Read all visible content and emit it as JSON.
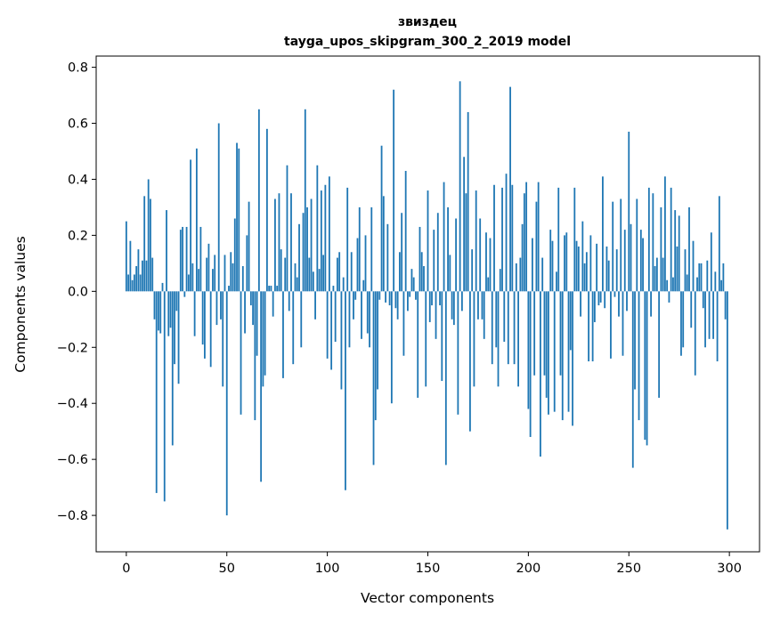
{
  "chart_data": {
    "type": "bar",
    "title": "звиздец",
    "subtitle": "tayga_upos_skipgram_300_2_2019 model",
    "xlabel": "Vector components",
    "ylabel": "Components values",
    "xlim": [
      -15,
      315
    ],
    "ylim": [
      -0.93,
      0.84
    ],
    "xticks": [
      0,
      50,
      100,
      150,
      200,
      250,
      300
    ],
    "xtick_labels": [
      "0",
      "50",
      "100",
      "150",
      "200",
      "250",
      "300"
    ],
    "yticks": [
      0.8,
      0.6,
      0.4,
      0.2,
      0.0,
      -0.2,
      -0.4,
      -0.6,
      -0.8
    ],
    "ytick_labels": [
      "0.8",
      "0.6",
      "0.4",
      "0.2",
      "0.0",
      "−0.2",
      "−0.4",
      "−0.6",
      "−0.8"
    ],
    "grid": false,
    "bar_color": "#1f77b4",
    "x": [
      0,
      1,
      2,
      3,
      4,
      5,
      6,
      7,
      8,
      9,
      10,
      11,
      12,
      13,
      14,
      15,
      16,
      17,
      18,
      19,
      20,
      21,
      22,
      23,
      24,
      25,
      26,
      27,
      28,
      29,
      30,
      31,
      32,
      33,
      34,
      35,
      36,
      37,
      38,
      39,
      40,
      41,
      42,
      43,
      44,
      45,
      46,
      47,
      48,
      49,
      50,
      51,
      52,
      53,
      54,
      55,
      56,
      57,
      58,
      59,
      60,
      61,
      62,
      63,
      64,
      65,
      66,
      67,
      68,
      69,
      70,
      71,
      72,
      73,
      74,
      75,
      76,
      77,
      78,
      79,
      80,
      81,
      82,
      83,
      84,
      85,
      86,
      87,
      88,
      89,
      90,
      91,
      92,
      93,
      94,
      95,
      96,
      97,
      98,
      99,
      100,
      101,
      102,
      103,
      104,
      105,
      106,
      107,
      108,
      109,
      110,
      111,
      112,
      113,
      114,
      115,
      116,
      117,
      118,
      119,
      120,
      121,
      122,
      123,
      124,
      125,
      126,
      127,
      128,
      129,
      130,
      131,
      132,
      133,
      134,
      135,
      136,
      137,
      138,
      139,
      140,
      141,
      142,
      143,
      144,
      145,
      146,
      147,
      148,
      149,
      150,
      151,
      152,
      153,
      154,
      155,
      156,
      157,
      158,
      159,
      160,
      161,
      162,
      163,
      164,
      165,
      166,
      167,
      168,
      169,
      170,
      171,
      172,
      173,
      174,
      175,
      176,
      177,
      178,
      179,
      180,
      181,
      182,
      183,
      184,
      185,
      186,
      187,
      188,
      189,
      190,
      191,
      192,
      193,
      194,
      195,
      196,
      197,
      198,
      199,
      200,
      201,
      202,
      203,
      204,
      205,
      206,
      207,
      208,
      209,
      210,
      211,
      212,
      213,
      214,
      215,
      216,
      217,
      218,
      219,
      220,
      221,
      222,
      223,
      224,
      225,
      226,
      227,
      228,
      229,
      230,
      231,
      232,
      233,
      234,
      235,
      236,
      237,
      238,
      239,
      240,
      241,
      242,
      243,
      244,
      245,
      246,
      247,
      248,
      249,
      250,
      251,
      252,
      253,
      254,
      255,
      256,
      257,
      258,
      259,
      260,
      261,
      262,
      263,
      264,
      265,
      266,
      267,
      268,
      269,
      270,
      271,
      272,
      273,
      274,
      275,
      276,
      277,
      278,
      279,
      280,
      281,
      282,
      283,
      284,
      285,
      286,
      287,
      288,
      289,
      290,
      291,
      292,
      293,
      294,
      295,
      296,
      297,
      298,
      299
    ],
    "values": [
      0.25,
      0.06,
      0.18,
      0.04,
      0.06,
      0.09,
      0.15,
      0.06,
      0.11,
      0.34,
      0.11,
      0.4,
      0.33,
      0.12,
      -0.1,
      -0.72,
      -0.14,
      -0.15,
      0.03,
      -0.75,
      0.29,
      -0.16,
      -0.13,
      -0.55,
      -0.26,
      -0.07,
      -0.33,
      0.22,
      0.23,
      -0.02,
      0.23,
      0.06,
      0.47,
      0.1,
      -0.16,
      0.51,
      0.08,
      0.23,
      -0.19,
      -0.24,
      0.12,
      0.17,
      -0.27,
      0.08,
      0.13,
      -0.12,
      0.6,
      -0.1,
      -0.34,
      0.13,
      -0.8,
      0.02,
      0.14,
      0.1,
      0.26,
      0.53,
      0.51,
      -0.44,
      0.09,
      -0.15,
      0.2,
      0.32,
      -0.05,
      -0.12,
      -0.46,
      -0.23,
      0.65,
      -0.68,
      -0.34,
      -0.3,
      0.58,
      0.02,
      0.02,
      -0.09,
      0.33,
      0.02,
      0.35,
      0.15,
      -0.31,
      0.12,
      0.45,
      -0.07,
      0.35,
      -0.26,
      0.1,
      0.05,
      0.24,
      -0.2,
      0.28,
      0.65,
      0.3,
      0.12,
      0.33,
      0.07,
      -0.1,
      0.45,
      0.08,
      0.36,
      0.13,
      0.38,
      -0.24,
      0.41,
      -0.28,
      0.02,
      -0.18,
      0.12,
      0.14,
      -0.35,
      0.05,
      -0.71,
      0.37,
      -0.2,
      0.14,
      -0.1,
      -0.03,
      0.19,
      0.3,
      -0.17,
      0.04,
      0.2,
      -0.15,
      -0.2,
      0.3,
      -0.62,
      -0.46,
      -0.35,
      -0.03,
      0.52,
      0.34,
      -0.04,
      0.24,
      -0.05,
      -0.4,
      0.72,
      -0.06,
      -0.1,
      0.14,
      0.28,
      -0.23,
      0.43,
      -0.07,
      -0.02,
      0.08,
      0.05,
      -0.03,
      -0.38,
      0.23,
      0.14,
      0.09,
      -0.34,
      0.36,
      -0.11,
      -0.05,
      0.22,
      -0.17,
      0.28,
      -0.05,
      -0.32,
      0.39,
      -0.62,
      0.3,
      0.13,
      -0.1,
      -0.12,
      0.26,
      -0.44,
      0.75,
      -0.07,
      0.48,
      0.35,
      0.64,
      -0.5,
      0.15,
      -0.34,
      0.36,
      -0.1,
      0.26,
      -0.1,
      -0.17,
      0.21,
      0.05,
      0.19,
      -0.26,
      0.38,
      -0.2,
      -0.34,
      0.08,
      0.37,
      -0.18,
      0.42,
      -0.26,
      0.73,
      0.38,
      -0.26,
      0.1,
      -0.34,
      0.12,
      0.24,
      0.35,
      0.39,
      -0.42,
      -0.52,
      0.19,
      -0.3,
      0.32,
      0.39,
      -0.59,
      0.12,
      -0.3,
      -0.38,
      -0.44,
      0.22,
      0.18,
      -0.43,
      0.07,
      0.37,
      -0.3,
      -0.46,
      0.2,
      0.21,
      -0.43,
      -0.21,
      -0.48,
      0.37,
      0.18,
      0.16,
      -0.09,
      0.25,
      0.1,
      0.14,
      -0.25,
      0.2,
      -0.25,
      -0.11,
      0.17,
      -0.05,
      -0.04,
      0.41,
      -0.06,
      0.16,
      0.11,
      -0.24,
      0.32,
      -0.02,
      0.15,
      -0.09,
      0.33,
      -0.23,
      0.22,
      -0.07,
      0.57,
      0.24,
      -0.63,
      -0.35,
      0.33,
      -0.46,
      0.22,
      0.19,
      -0.53,
      -0.55,
      0.37,
      -0.09,
      0.35,
      0.09,
      0.12,
      -0.38,
      0.3,
      0.12,
      0.41,
      0.04,
      -0.04,
      0.37,
      0.05,
      0.29,
      0.16,
      0.27,
      -0.23,
      -0.2,
      0.15,
      0.06,
      0.3,
      -0.13,
      0.18,
      -0.3,
      0.05,
      0.1,
      0.1,
      -0.06,
      -0.2,
      0.11,
      -0.17,
      0.21,
      -0.17,
      0.07,
      -0.25,
      0.34,
      0.04,
      0.1,
      -0.1,
      -0.85
    ]
  }
}
